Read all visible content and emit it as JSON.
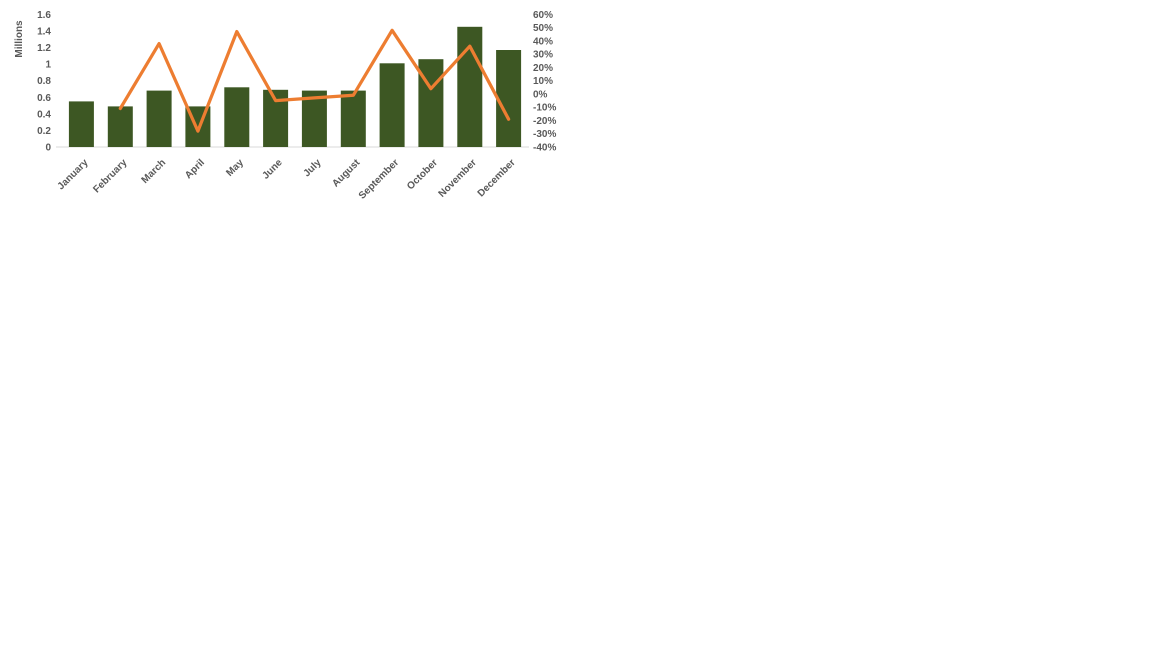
{
  "page": {
    "background": "#FFFFFF"
  },
  "chart_data": {
    "type": "combo",
    "title": "",
    "legend": false,
    "gridlines": false,
    "text_color": "#595959",
    "axis_line_color": "#D9D9D9",
    "categories": [
      "January",
      "February",
      "March",
      "April",
      "May",
      "June",
      "July",
      "August",
      "September",
      "October",
      "November",
      "December"
    ],
    "series": [
      {
        "id": "bar-series",
        "type": "bar",
        "axis": "left",
        "color": "#3D5723",
        "values": [
          0.55,
          0.49,
          0.68,
          0.49,
          0.72,
          0.69,
          0.68,
          0.68,
          1.01,
          1.06,
          1.45,
          1.17
        ]
      },
      {
        "id": "line-series",
        "type": "line",
        "axis": "right",
        "color": "#ED7D31",
        "values": [
          null,
          -11,
          38,
          -28,
          47,
          -5,
          -3,
          -1,
          48,
          4,
          36,
          -19
        ]
      }
    ],
    "left_axis": {
      "title": "Millions",
      "min": 0,
      "max": 1.6,
      "step": 0.2,
      "tick_labels": [
        "0",
        "0.2",
        "0.4",
        "0.6",
        "0.8",
        "1",
        "1.2",
        "1.4",
        "1.6"
      ]
    },
    "right_axis": {
      "min": -40,
      "max": 60,
      "step": 10,
      "tick_labels": [
        "-40%",
        "-30%",
        "-20%",
        "-10%",
        "0%",
        "10%",
        "20%",
        "30%",
        "40%",
        "50%",
        "60%"
      ]
    }
  }
}
